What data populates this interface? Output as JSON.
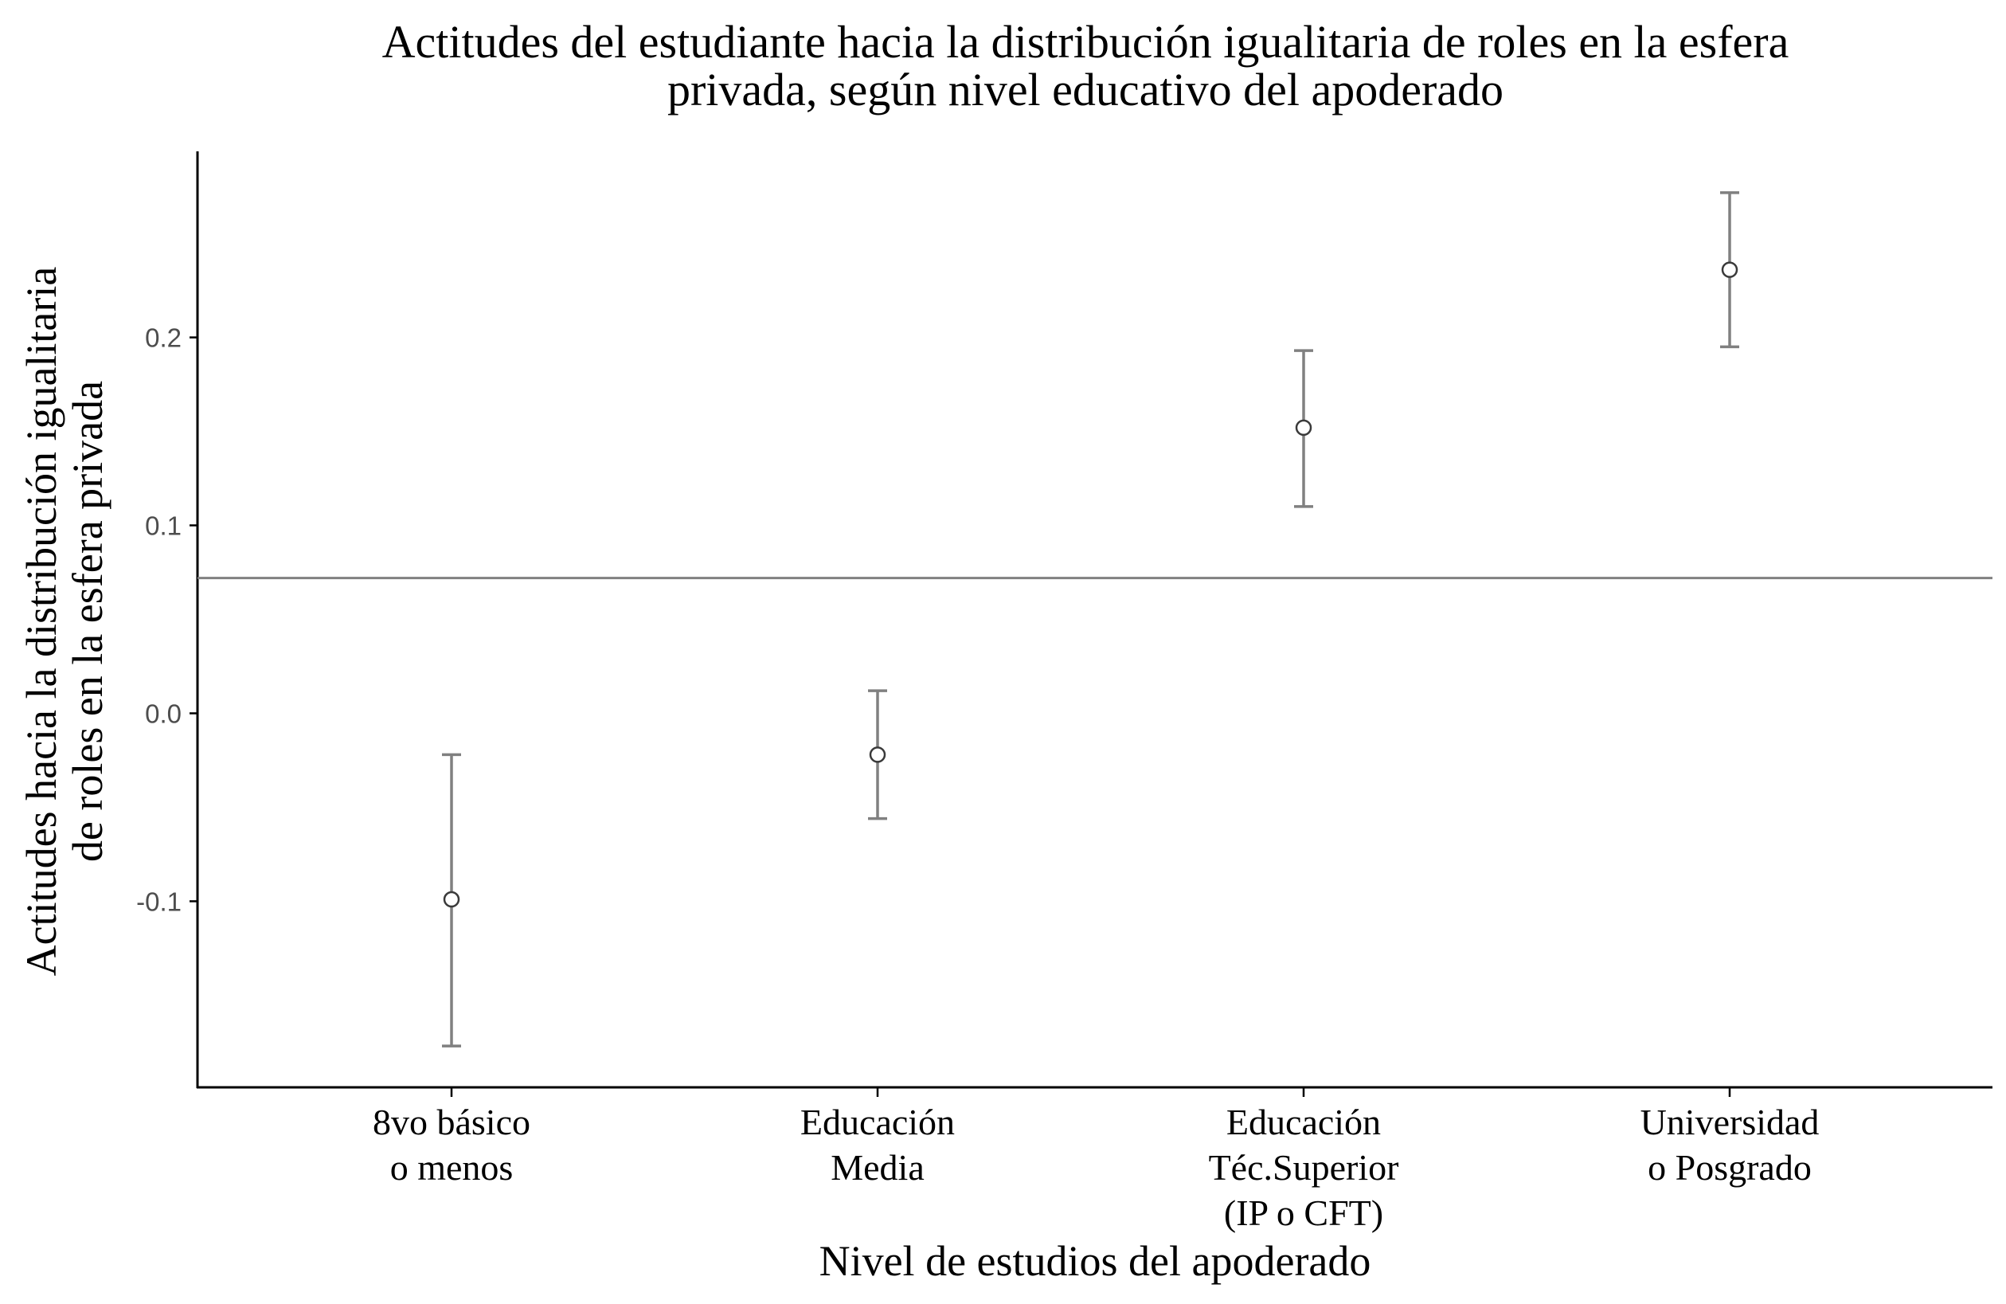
{
  "chart_data": {
    "type": "scatter",
    "title_lines": [
      "Actitudes del estudiante hacia la distribución igualitaria de roles en la esfera",
      "privada, según nivel educativo del apoderado"
    ],
    "xlabel": "Nivel de estudios del apoderado",
    "ylabel_lines": [
      "Actitudes hacia la distribución igualitaria",
      "de roles en la esfera privada"
    ],
    "categories": [
      [
        "8vo básico",
        "o menos"
      ],
      [
        "Educación",
        "Media"
      ],
      [
        "Educación",
        "Téc.Superior",
        "(IP o CFT)"
      ],
      [
        "Universidad",
        "o Posgrado"
      ]
    ],
    "points": [
      {
        "y": -0.099,
        "lower": -0.177,
        "upper": -0.022
      },
      {
        "y": -0.022,
        "lower": -0.056,
        "upper": 0.012
      },
      {
        "y": 0.152,
        "lower": 0.11,
        "upper": 0.193
      },
      {
        "y": 0.236,
        "lower": 0.195,
        "upper": 0.277
      }
    ],
    "reference_line": 0.072,
    "ylim": [
      -0.199,
      0.299
    ],
    "yticks": [
      -0.1,
      0.0,
      0.1,
      0.2
    ],
    "ytick_labels": [
      "-0.1",
      "0.0",
      "0.1",
      "0.2"
    ],
    "grid": false,
    "colors": {
      "errorbar": "#808080",
      "point_stroke": "#3a3a3a",
      "point_fill": "#ffffff",
      "reference_line": "#808080",
      "axis": "#000000"
    }
  }
}
